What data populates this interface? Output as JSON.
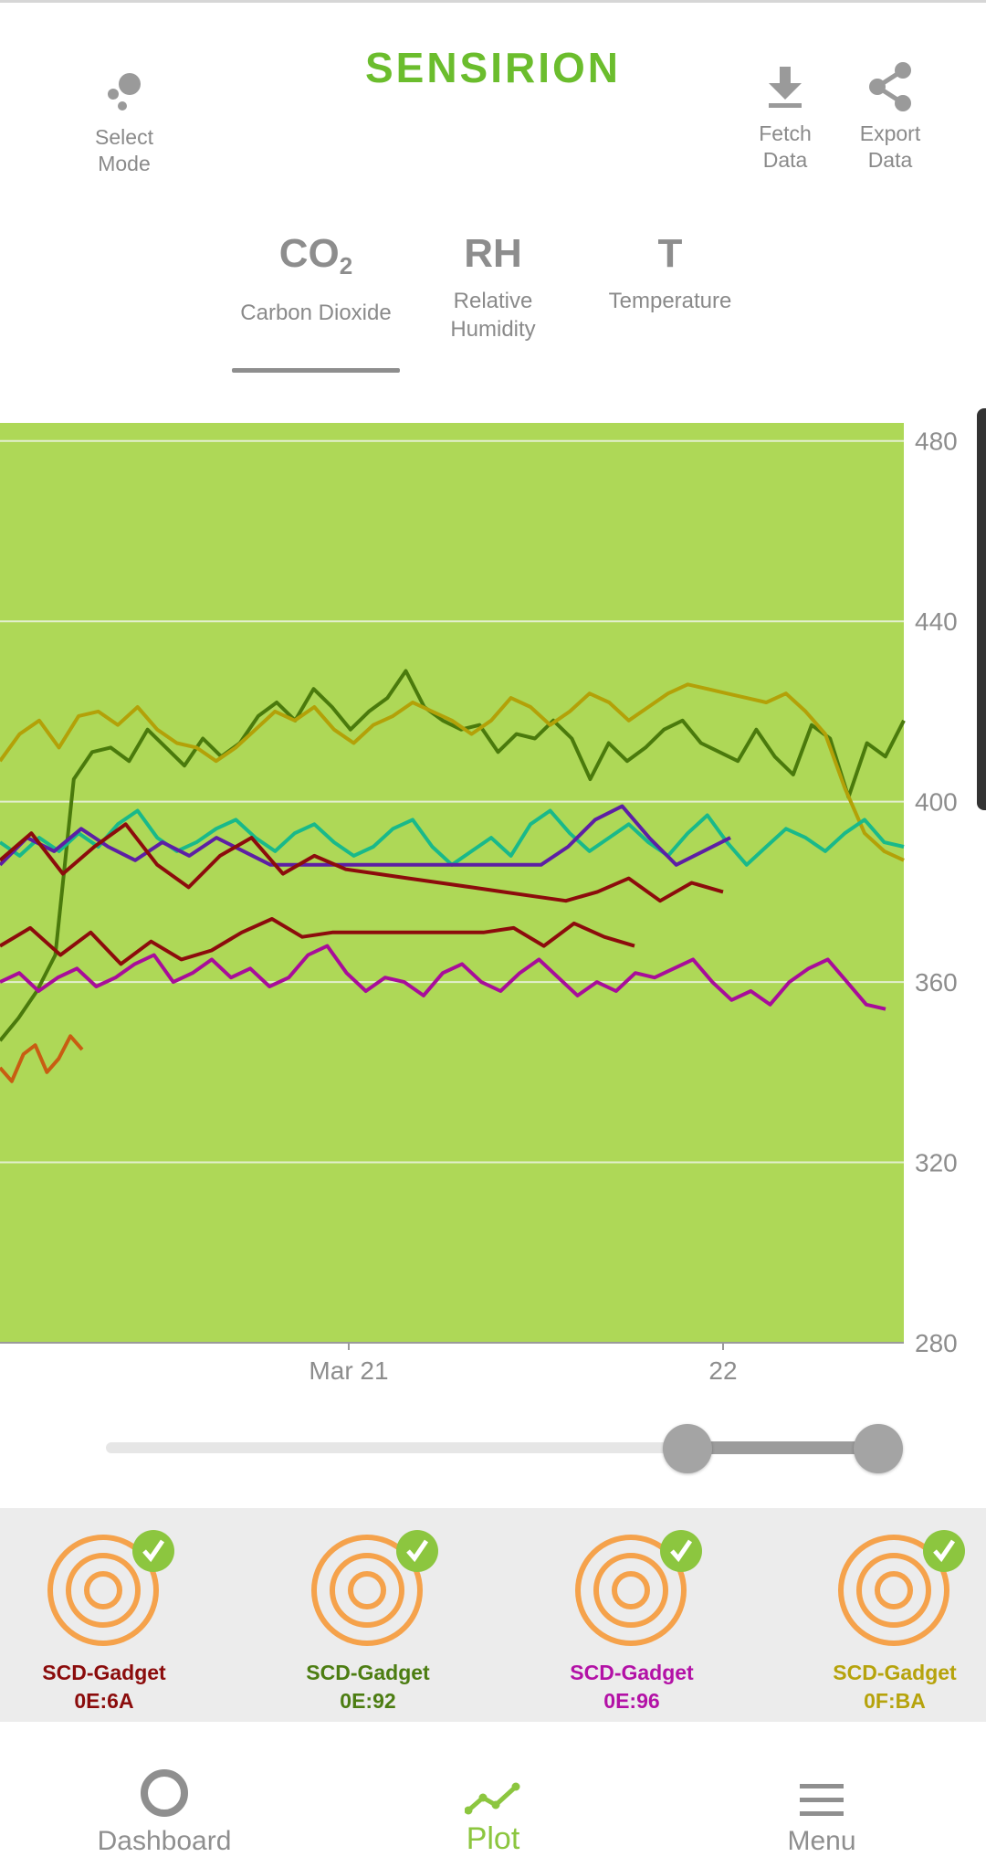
{
  "header": {
    "brand": "SENSIRION",
    "select_mode": "Select\nMode",
    "fetch_data": "Fetch\nData",
    "export_data": "Export\nData"
  },
  "tabs": [
    {
      "symbol": "CO",
      "subscript": "2",
      "label": "Carbon Dioxide",
      "active": true
    },
    {
      "symbol": "RH",
      "subscript": "",
      "label": "Relative\nHumidity",
      "active": false
    },
    {
      "symbol": "T",
      "subscript": "",
      "label": "Temperature",
      "active": false
    }
  ],
  "chart_data": {
    "type": "line",
    "background": "#aed857",
    "y_ticks": [
      280,
      320,
      360,
      400,
      440,
      480
    ],
    "ylim": [
      280,
      484
    ],
    "x_ticks": [
      "Mar 21",
      "22"
    ],
    "series": [
      {
        "color": "#4a7a0c",
        "values": [
          347,
          352,
          358,
          366,
          405,
          411,
          412,
          409,
          416,
          412,
          408,
          414,
          410,
          413,
          419,
          422,
          418,
          425,
          421,
          416,
          420,
          423,
          429,
          421,
          418,
          416,
          417,
          411,
          415,
          414,
          418,
          414,
          405,
          413,
          409,
          412,
          416,
          418,
          413,
          411,
          409,
          416,
          410,
          406,
          417,
          414,
          401,
          413,
          410,
          418
        ]
      },
      {
        "color": "#b3a108",
        "values": [
          409,
          415,
          418,
          412,
          419,
          420,
          417,
          421,
          416,
          413,
          412,
          409,
          412,
          416,
          420,
          418,
          421,
          416,
          413,
          417,
          419,
          422,
          420,
          418,
          415,
          418,
          423,
          421,
          417,
          420,
          424,
          422,
          418,
          421,
          424,
          426,
          425,
          424,
          423,
          422,
          424,
          420,
          415,
          403,
          393,
          389,
          387
        ]
      },
      {
        "color": "#19b98a",
        "values": [
          391,
          388,
          392,
          389,
          393,
          390,
          395,
          398,
          392,
          389,
          391,
          394,
          396,
          392,
          389,
          393,
          395,
          391,
          388,
          390,
          394,
          396,
          390,
          386,
          389,
          392,
          388,
          395,
          398,
          393,
          389,
          392,
          395,
          391,
          388,
          393,
          397,
          391,
          386,
          390,
          394,
          392,
          389,
          393,
          396,
          391,
          390
        ]
      },
      {
        "color": "#5d1fa4",
        "values": [
          386,
          392,
          389,
          394,
          390,
          387,
          391,
          388,
          392,
          389,
          386,
          386,
          386,
          386,
          386,
          386,
          386,
          386,
          386,
          386,
          386,
          390,
          396,
          399,
          392,
          386,
          389,
          392
        ]
      },
      {
        "color": "#8c0c0c",
        "values": [
          387,
          393,
          384,
          390,
          395,
          386,
          381,
          388,
          392,
          384,
          388,
          385,
          384,
          383,
          382,
          381,
          380,
          379,
          378,
          380,
          383,
          378,
          382,
          380
        ]
      },
      {
        "color": "#8c0c0c",
        "values": [
          368,
          372,
          366,
          371,
          364,
          369,
          365,
          367,
          371,
          374,
          370,
          371,
          371,
          371,
          371,
          371,
          371,
          372,
          368,
          373,
          370,
          368
        ]
      },
      {
        "color": "#a80d9a",
        "values": [
          360,
          362,
          358,
          361,
          363,
          359,
          361,
          364,
          366,
          360,
          362,
          365,
          361,
          363,
          359,
          361,
          366,
          368,
          362,
          358,
          361,
          360,
          357,
          362,
          364,
          360,
          358,
          362,
          365,
          361,
          357,
          360,
          358,
          362,
          361,
          363,
          365,
          360,
          356,
          358,
          355,
          360,
          363,
          365,
          360,
          355,
          354
        ]
      },
      {
        "color": "#c85d12",
        "values": [
          341,
          338,
          344,
          346,
          340,
          343,
          348,
          345
        ]
      }
    ]
  },
  "range_slider": {
    "low": 0.72,
    "high": 0.97
  },
  "gadgets": [
    {
      "name": "SCD-Gadget\n0E:6A",
      "color": "#8b0c0c",
      "checked": true
    },
    {
      "name": "SCD-Gadget\n0E:92",
      "color": "#4c7d12",
      "checked": true
    },
    {
      "name": "SCD-Gadget\n0E:96",
      "color": "#b311a6",
      "checked": true
    },
    {
      "name": "SCD-Gadget\n0F:BA",
      "color": "#b6a30c",
      "checked": true
    }
  ],
  "colors": {
    "accent": "#8cc63f",
    "gadget_ring": "#f5a24b"
  },
  "nav": [
    {
      "label": "Dashboard",
      "active": false
    },
    {
      "label": "Plot",
      "active": true
    },
    {
      "label": "Menu",
      "active": false
    }
  ]
}
